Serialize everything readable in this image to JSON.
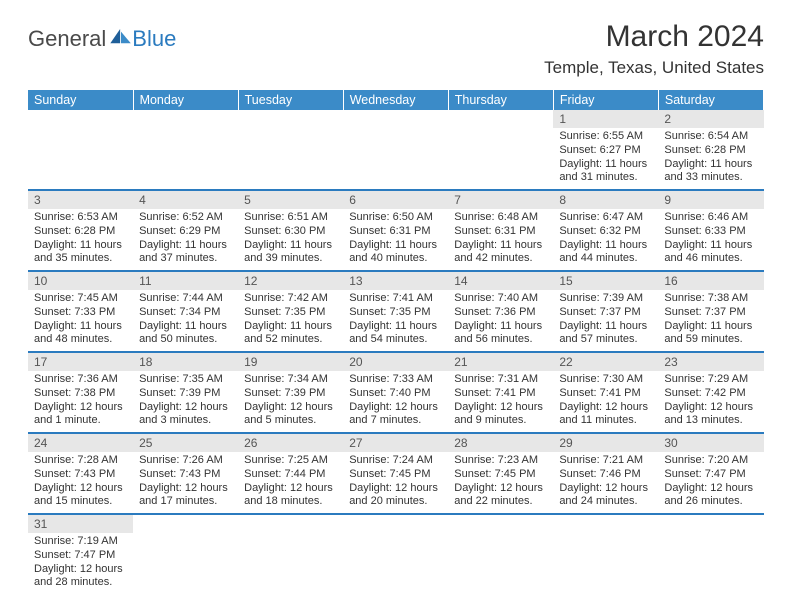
{
  "brand": {
    "part1": "General",
    "part2": "Blue"
  },
  "title": "March 2024",
  "location": "Temple, Texas, United States",
  "colors": {
    "header_bg": "#3b8bc8",
    "accent": "#2b7bbf",
    "daynum_bg": "#e7e7e7",
    "text": "#333333",
    "background": "#ffffff"
  },
  "layout": {
    "columns": 7,
    "first_day_index": 5,
    "days_in_month": 31
  },
  "weekdays": [
    "Sunday",
    "Monday",
    "Tuesday",
    "Wednesday",
    "Thursday",
    "Friday",
    "Saturday"
  ],
  "days": [
    {
      "n": 1,
      "sunrise": "6:55 AM",
      "sunset": "6:27 PM",
      "daylight": "11 hours and 31 minutes."
    },
    {
      "n": 2,
      "sunrise": "6:54 AM",
      "sunset": "6:28 PM",
      "daylight": "11 hours and 33 minutes."
    },
    {
      "n": 3,
      "sunrise": "6:53 AM",
      "sunset": "6:28 PM",
      "daylight": "11 hours and 35 minutes."
    },
    {
      "n": 4,
      "sunrise": "6:52 AM",
      "sunset": "6:29 PM",
      "daylight": "11 hours and 37 minutes."
    },
    {
      "n": 5,
      "sunrise": "6:51 AM",
      "sunset": "6:30 PM",
      "daylight": "11 hours and 39 minutes."
    },
    {
      "n": 6,
      "sunrise": "6:50 AM",
      "sunset": "6:31 PM",
      "daylight": "11 hours and 40 minutes."
    },
    {
      "n": 7,
      "sunrise": "6:48 AM",
      "sunset": "6:31 PM",
      "daylight": "11 hours and 42 minutes."
    },
    {
      "n": 8,
      "sunrise": "6:47 AM",
      "sunset": "6:32 PM",
      "daylight": "11 hours and 44 minutes."
    },
    {
      "n": 9,
      "sunrise": "6:46 AM",
      "sunset": "6:33 PM",
      "daylight": "11 hours and 46 minutes."
    },
    {
      "n": 10,
      "sunrise": "7:45 AM",
      "sunset": "7:33 PM",
      "daylight": "11 hours and 48 minutes."
    },
    {
      "n": 11,
      "sunrise": "7:44 AM",
      "sunset": "7:34 PM",
      "daylight": "11 hours and 50 minutes."
    },
    {
      "n": 12,
      "sunrise": "7:42 AM",
      "sunset": "7:35 PM",
      "daylight": "11 hours and 52 minutes."
    },
    {
      "n": 13,
      "sunrise": "7:41 AM",
      "sunset": "7:35 PM",
      "daylight": "11 hours and 54 minutes."
    },
    {
      "n": 14,
      "sunrise": "7:40 AM",
      "sunset": "7:36 PM",
      "daylight": "11 hours and 56 minutes."
    },
    {
      "n": 15,
      "sunrise": "7:39 AM",
      "sunset": "7:37 PM",
      "daylight": "11 hours and 57 minutes."
    },
    {
      "n": 16,
      "sunrise": "7:38 AM",
      "sunset": "7:37 PM",
      "daylight": "11 hours and 59 minutes."
    },
    {
      "n": 17,
      "sunrise": "7:36 AM",
      "sunset": "7:38 PM",
      "daylight": "12 hours and 1 minute."
    },
    {
      "n": 18,
      "sunrise": "7:35 AM",
      "sunset": "7:39 PM",
      "daylight": "12 hours and 3 minutes."
    },
    {
      "n": 19,
      "sunrise": "7:34 AM",
      "sunset": "7:39 PM",
      "daylight": "12 hours and 5 minutes."
    },
    {
      "n": 20,
      "sunrise": "7:33 AM",
      "sunset": "7:40 PM",
      "daylight": "12 hours and 7 minutes."
    },
    {
      "n": 21,
      "sunrise": "7:31 AM",
      "sunset": "7:41 PM",
      "daylight": "12 hours and 9 minutes."
    },
    {
      "n": 22,
      "sunrise": "7:30 AM",
      "sunset": "7:41 PM",
      "daylight": "12 hours and 11 minutes."
    },
    {
      "n": 23,
      "sunrise": "7:29 AM",
      "sunset": "7:42 PM",
      "daylight": "12 hours and 13 minutes."
    },
    {
      "n": 24,
      "sunrise": "7:28 AM",
      "sunset": "7:43 PM",
      "daylight": "12 hours and 15 minutes."
    },
    {
      "n": 25,
      "sunrise": "7:26 AM",
      "sunset": "7:43 PM",
      "daylight": "12 hours and 17 minutes."
    },
    {
      "n": 26,
      "sunrise": "7:25 AM",
      "sunset": "7:44 PM",
      "daylight": "12 hours and 18 minutes."
    },
    {
      "n": 27,
      "sunrise": "7:24 AM",
      "sunset": "7:45 PM",
      "daylight": "12 hours and 20 minutes."
    },
    {
      "n": 28,
      "sunrise": "7:23 AM",
      "sunset": "7:45 PM",
      "daylight": "12 hours and 22 minutes."
    },
    {
      "n": 29,
      "sunrise": "7:21 AM",
      "sunset": "7:46 PM",
      "daylight": "12 hours and 24 minutes."
    },
    {
      "n": 30,
      "sunrise": "7:20 AM",
      "sunset": "7:47 PM",
      "daylight": "12 hours and 26 minutes."
    },
    {
      "n": 31,
      "sunrise": "7:19 AM",
      "sunset": "7:47 PM",
      "daylight": "12 hours and 28 minutes."
    }
  ]
}
